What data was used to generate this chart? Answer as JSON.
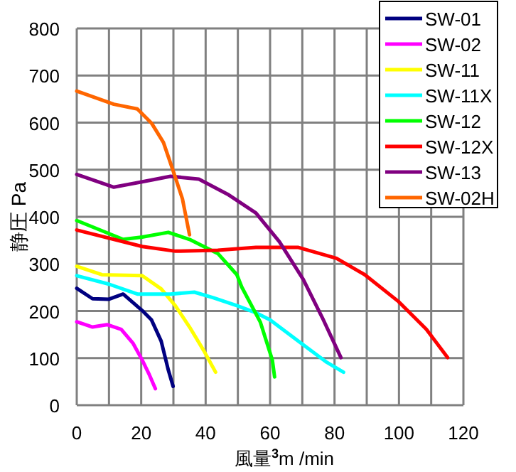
{
  "chart_data": {
    "type": "line",
    "xlabel": "風量$^{3}$m /min",
    "ylabel": "静圧 Pa",
    "xlim": [
      0,
      120
    ],
    "ylim": [
      0,
      800
    ],
    "xticks": [
      0,
      {
        "value": 10,
        "label": null
      },
      20,
      {
        "value": 30,
        "label": null
      },
      40,
      {
        "value": 50,
        "label": null
      },
      60,
      {
        "value": 70,
        "label": null
      },
      80,
      {
        "value": 90,
        "label": null
      },
      100,
      {
        "value": 110,
        "label": null
      },
      120
    ],
    "yticks": [
      0,
      100,
      200,
      300,
      400,
      500,
      600,
      700,
      800
    ],
    "grid": true,
    "legend": "top right",
    "marker": "none",
    "line_style": "solid",
    "series": [
      {
        "name": "SW-01",
        "color": "#000080",
        "x": [
          0,
          4.9,
          10,
          14.4,
          20.3,
          23.2,
          26.2,
          28.4,
          29.9
        ],
        "values": [
          248,
          226,
          225,
          236,
          201,
          181,
          136,
          75,
          40
        ]
      },
      {
        "name": "SW-02",
        "color": "#ff00ff",
        "x": [
          0,
          4.9,
          9.4,
          13.8,
          17.5,
          20.3,
          22.5,
          24.4
        ],
        "values": [
          177,
          166,
          171,
          161,
          131,
          96,
          65,
          35
        ]
      },
      {
        "name": "SW-11",
        "color": "#ffff00",
        "x": [
          0,
          7.8,
          20.3,
          26.2,
          30.6,
          35,
          39.4,
          43.1
        ],
        "values": [
          295,
          277,
          275,
          247,
          211,
          166,
          116,
          70
        ]
      },
      {
        "name": "SW-11X",
        "color": "#00ffff",
        "x": [
          0,
          10,
          18.8,
          29.1,
          36.5,
          42.4,
          49.8,
          55.7,
          60,
          68.8,
          77.6,
          82.8
        ],
        "values": [
          275,
          257,
          236,
          236,
          240,
          228,
          211,
          196,
          181,
          136,
          91,
          70
        ]
      },
      {
        "name": "SW-12",
        "color": "#00ff00",
        "x": [
          0,
          14.4,
          20.3,
          28.4,
          35,
          43.8,
          49.7,
          51.2,
          57,
          60.7,
          61.4
        ],
        "values": [
          392,
          352,
          357,
          367,
          352,
          322,
          277,
          251,
          176,
          96,
          60
        ]
      },
      {
        "name": "SW-12X",
        "color": "#ff0000",
        "x": [
          0,
          20.3,
          30.6,
          43.8,
          55.6,
          68.8,
          80.6,
          89.4,
          99.7,
          108.5,
          115.1
        ],
        "values": [
          372,
          337,
          327,
          329,
          335,
          335,
          312,
          277,
          221,
          161,
          101
        ]
      },
      {
        "name": "SW-13",
        "color": "#800080",
        "x": [
          0,
          11.5,
          23.2,
          29.1,
          37.9,
          46.8,
          51.2,
          55.6,
          62.9,
          70.3,
          76.2,
          82
        ],
        "values": [
          490,
          463,
          478,
          486,
          480,
          448,
          428,
          408,
          347,
          267,
          186,
          101
        ]
      },
      {
        "name": "SW-02H",
        "color": "#ff6600",
        "x": [
          0,
          11.5,
          18.8,
          23.2,
          26.9,
          29.9,
          32.8,
          35
        ],
        "values": [
          667,
          639,
          629,
          599,
          558,
          498,
          438,
          362
        ]
      }
    ]
  }
}
